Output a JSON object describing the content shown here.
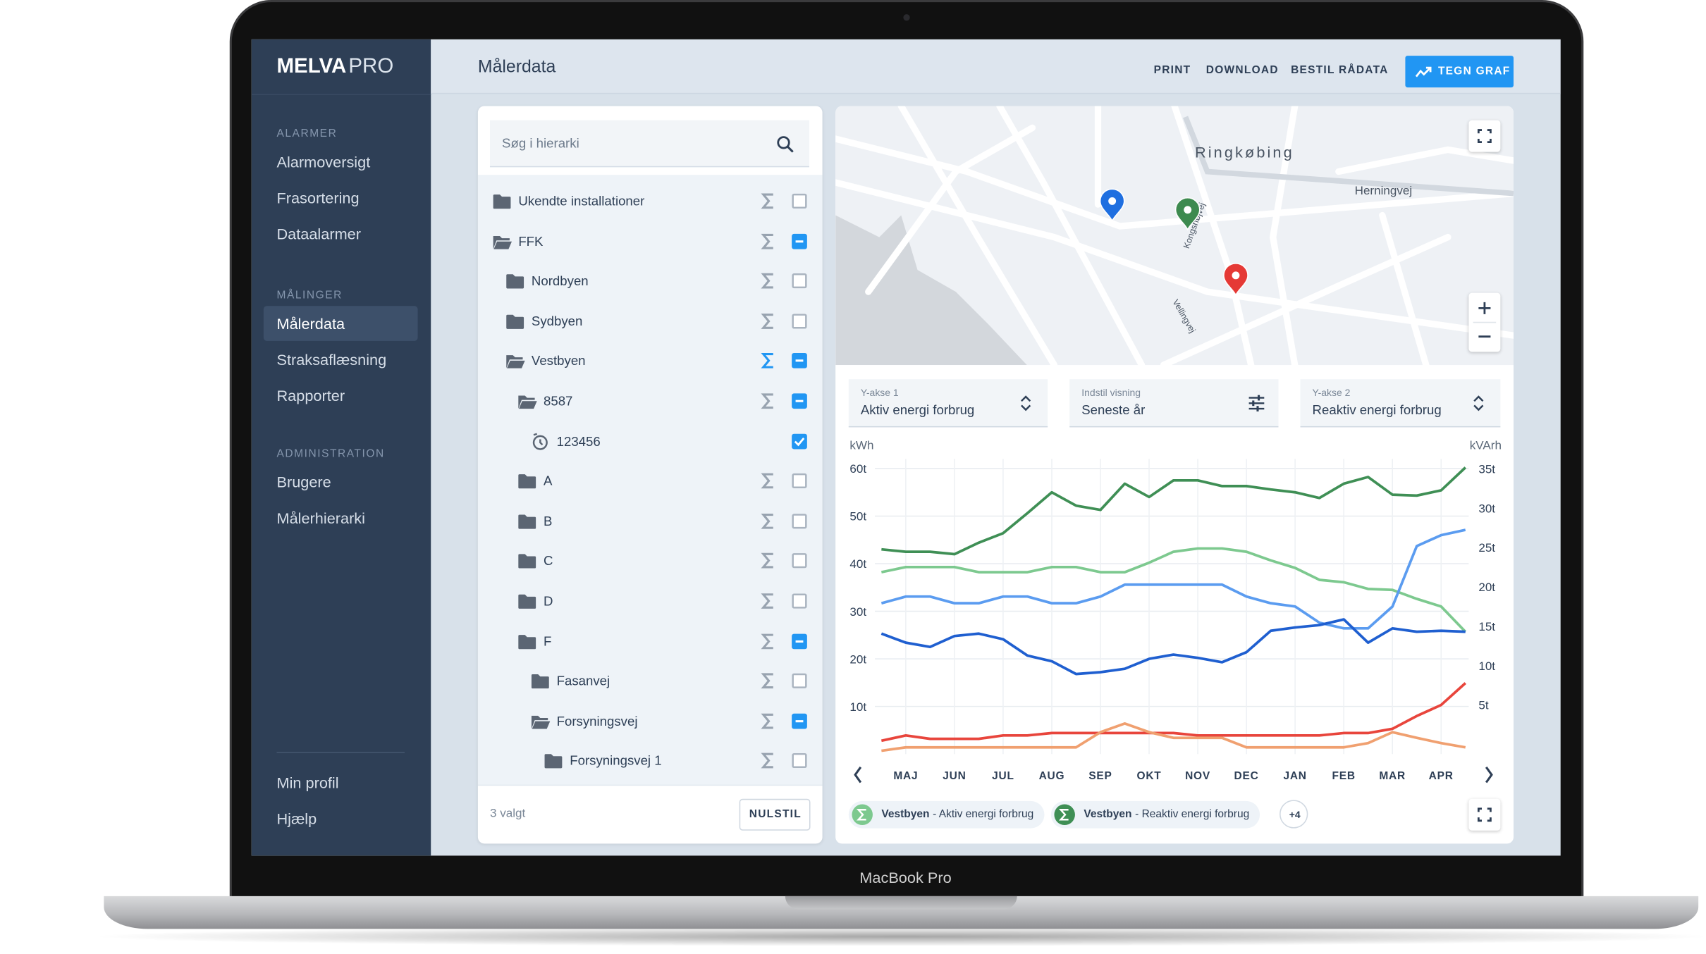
{
  "device": {
    "label": "MacBook Pro"
  },
  "sidebar": {
    "logo": {
      "bold": "MELVA",
      "light": "PRO"
    },
    "sections": [
      {
        "heading": "ALARMER",
        "items": [
          "Alarmoversigt",
          "Frasortering",
          "Dataalarmer"
        ]
      },
      {
        "heading": "MÅLINGER",
        "items": [
          "Målerdata",
          "Straksaflæsning",
          "Rapporter"
        ]
      },
      {
        "heading": "ADMINISTRATION",
        "items": [
          "Brugere",
          "Målerhierarki"
        ]
      }
    ],
    "active": [
      1,
      0
    ],
    "footer": [
      "Min profil",
      "Hjælp"
    ]
  },
  "header": {
    "title": "Målerdata",
    "actions": [
      "PRINT",
      "DOWNLOAD",
      "BESTIL RÅDATA"
    ],
    "primary": "TEGN GRAF"
  },
  "tree": {
    "search_placeholder": "Søg i hierarki",
    "items": [
      {
        "label": "Ukendte installationer",
        "level": 0,
        "icon": "folder",
        "sigma": "off",
        "state": "empty"
      },
      {
        "label": "FFK",
        "level": 0,
        "icon": "open",
        "sigma": "off",
        "state": "partial"
      },
      {
        "label": "Nordbyen",
        "level": 1,
        "icon": "folder",
        "sigma": "off",
        "state": "empty"
      },
      {
        "label": "Sydbyen",
        "level": 1,
        "icon": "folder",
        "sigma": "off",
        "state": "empty"
      },
      {
        "label": "Vestbyen",
        "level": 1,
        "icon": "open",
        "sigma": "on",
        "state": "partial"
      },
      {
        "label": "8587",
        "level": 2,
        "icon": "open",
        "sigma": "off",
        "state": "partial"
      },
      {
        "label": "123456",
        "level": 3,
        "icon": "meter",
        "sigma": "none",
        "state": "checked"
      },
      {
        "label": "A",
        "level": 2,
        "icon": "folder",
        "sigma": "off",
        "state": "empty"
      },
      {
        "label": "B",
        "level": 2,
        "icon": "folder",
        "sigma": "off",
        "state": "empty"
      },
      {
        "label": "C",
        "level": 2,
        "icon": "folder",
        "sigma": "off",
        "state": "empty"
      },
      {
        "label": "D",
        "level": 2,
        "icon": "folder",
        "sigma": "off",
        "state": "empty"
      },
      {
        "label": "F",
        "level": 2,
        "icon": "folder",
        "sigma": "off",
        "state": "partial"
      },
      {
        "label": "Fasanvej",
        "level": 3,
        "icon": "folder",
        "sigma": "off",
        "state": "empty"
      },
      {
        "label": "Forsyningsvej",
        "level": 3,
        "icon": "open",
        "sigma": "off",
        "state": "partial"
      },
      {
        "label": "Forsyningsvej 1",
        "level": 4,
        "icon": "folder",
        "sigma": "off",
        "state": "empty"
      }
    ],
    "selected": "3 valgt",
    "reset": "NULSTIL"
  },
  "map": {
    "labels": [
      "Ringkøbing",
      "Herningvej",
      "Kongshøjvej",
      "Vellingvej"
    ]
  },
  "controls": [
    {
      "label": "Y-akse 1",
      "value": "Aktiv energi forbrug"
    },
    {
      "label": "Indstil visning",
      "value": "Seneste år"
    },
    {
      "label": "Y-akse 2",
      "value": "Reaktiv energi forbrug"
    }
  ],
  "chart_data": {
    "type": "line",
    "y_label": "kWh",
    "y2_label": "kVArh",
    "x": [
      0,
      1,
      2,
      3,
      4,
      5,
      6,
      7,
      8,
      9,
      10,
      11,
      12,
      13,
      14,
      15,
      16,
      17,
      18,
      19,
      20,
      21,
      22,
      23,
      24
    ],
    "xlim": [
      0,
      24
    ],
    "xticks": [
      {
        "value": 1,
        "label": "MAJ"
      },
      {
        "value": 3,
        "label": "JUN"
      },
      {
        "value": 5,
        "label": "JUL"
      },
      {
        "value": 7,
        "label": "AUG"
      },
      {
        "value": 9,
        "label": "SEP"
      },
      {
        "value": 11,
        "label": "OKT"
      },
      {
        "value": 13,
        "label": "NOV"
      },
      {
        "value": 15,
        "label": "DEC"
      },
      {
        "value": 17,
        "label": "JAN"
      },
      {
        "value": 19,
        "label": "FEB"
      },
      {
        "value": 21,
        "label": "MAR"
      },
      {
        "value": 23,
        "label": "APR"
      }
    ],
    "ylim": [
      0,
      62
    ],
    "yticks": [
      {
        "value": 10,
        "label": "10t"
      },
      {
        "value": 20,
        "label": "20t"
      },
      {
        "value": 30,
        "label": "30t"
      },
      {
        "value": 40,
        "label": "40t"
      },
      {
        "value": 50,
        "label": "50t"
      },
      {
        "value": 60,
        "label": "60t"
      }
    ],
    "y2lim": [
      -1.25,
      36.25
    ],
    "y2ticks": [
      {
        "value": 5,
        "label": "5t"
      },
      {
        "value": 10,
        "label": "10t"
      },
      {
        "value": 15,
        "label": "15t"
      },
      {
        "value": 20,
        "label": "20t"
      },
      {
        "value": 25,
        "label": "25t"
      },
      {
        "value": 30,
        "label": "30t"
      },
      {
        "value": 35,
        "label": "35t"
      }
    ],
    "grid": true,
    "series": [
      {
        "color": "#3f8f55",
        "values": [
          43,
          42.5,
          42.5,
          42,
          44.4,
          46.4,
          50.6,
          55,
          52.2,
          51.3,
          56.8,
          54,
          57.5,
          57.5,
          56.3,
          56.3,
          55.6,
          55,
          53.8,
          56.8,
          58.2,
          54.5,
          54.3,
          55.4,
          60.2
        ]
      },
      {
        "color": "#7dc98f",
        "values": [
          38.2,
          39.3,
          39.3,
          39.3,
          38.2,
          38.2,
          38.2,
          39.3,
          39.3,
          38.2,
          38.2,
          40.2,
          42.5,
          43.2,
          43.2,
          42.5,
          40.7,
          39.1,
          36.6,
          36.1,
          34.7,
          34.5,
          32.6,
          31,
          25.7
        ]
      },
      {
        "color": "#5b9cf0",
        "values": [
          31.7,
          33.1,
          33.1,
          31.7,
          31.7,
          33.1,
          33.1,
          31.7,
          31.7,
          33.1,
          35.6,
          35.6,
          35.6,
          35.6,
          35.6,
          33.1,
          31.7,
          31,
          27.6,
          26.4,
          26.4,
          31,
          43.7,
          46,
          47.1
        ]
      },
      {
        "color": "#1f5fd0",
        "values": [
          25.3,
          23.4,
          22.5,
          24.8,
          25.3,
          24.1,
          20.7,
          19.5,
          16.8,
          17.2,
          17.9,
          20,
          20.9,
          20.2,
          19.3,
          21.4,
          25.9,
          26.6,
          27.1,
          28.3,
          23.4,
          26.4,
          25.7,
          25.9,
          25.7
        ]
      },
      {
        "color": "#e8453c",
        "values": [
          2.8,
          3.9,
          3.2,
          3.2,
          3.2,
          3.9,
          3.9,
          4.4,
          4.4,
          4.4,
          4.4,
          4.4,
          4.4,
          3.9,
          3.9,
          3.9,
          3.9,
          3.9,
          3.9,
          4.4,
          4.4,
          5.3,
          8,
          10.3,
          14.9
        ]
      },
      {
        "color": "#f0a070",
        "values": [
          0.7,
          1.4,
          1.4,
          1.4,
          1.4,
          1.4,
          1.4,
          1.4,
          1.4,
          4.6,
          6.4,
          4.6,
          3.4,
          3.4,
          3.4,
          1.4,
          1.4,
          1.4,
          1.4,
          1.4,
          2.3,
          4.6,
          3.4,
          2.3,
          1.4
        ]
      }
    ],
    "legend": [
      {
        "site": "Vestbyen",
        "text": "- Aktiv energi forbrug",
        "color": "#7dc98f"
      },
      {
        "site": "Vestbyen",
        "text": "- Reaktiv energi forbrug",
        "color": "#3f8f55"
      }
    ],
    "more": "+4"
  }
}
